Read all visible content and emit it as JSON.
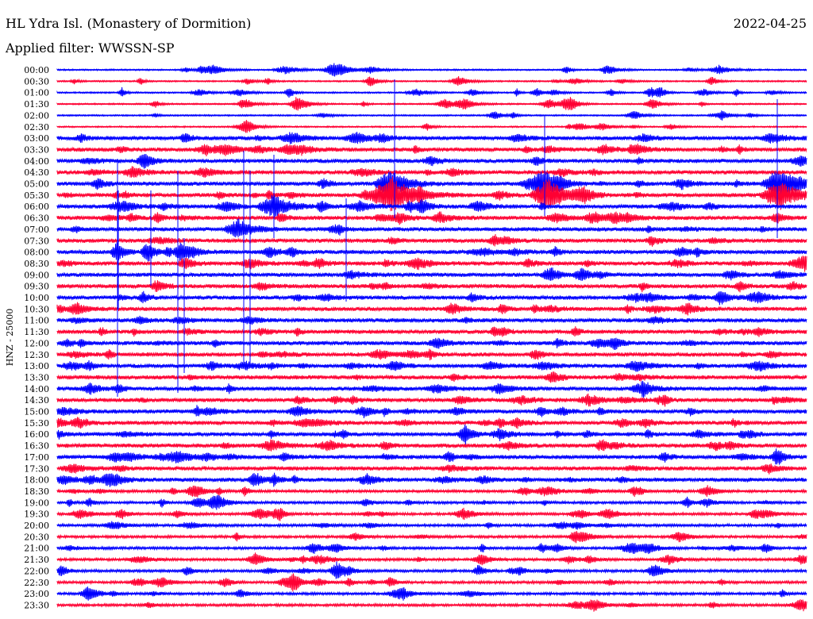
{
  "header": {
    "station": "HL Ydra Isl. (Monastery of Dormition)",
    "date": "2022-04-25",
    "filter": "Applied filter: WWSSN-SP"
  },
  "chart_data": {
    "type": "line",
    "ylabel": "HNZ - 25000",
    "rows": [
      "00:00",
      "00:30",
      "01:00",
      "01:30",
      "02:00",
      "02:30",
      "03:00",
      "03:30",
      "04:00",
      "04:30",
      "05:00",
      "05:30",
      "06:00",
      "06:30",
      "07:00",
      "07:30",
      "08:00",
      "08:30",
      "09:00",
      "09:30",
      "10:00",
      "10:30",
      "11:00",
      "11:30",
      "12:00",
      "12:30",
      "13:00",
      "13:30",
      "14:00",
      "14:30",
      "15:00",
      "15:30",
      "16:00",
      "16:30",
      "17:00",
      "17:30",
      "18:00",
      "18:30",
      "19:00",
      "19:30",
      "20:00",
      "20:30",
      "21:00",
      "21:30",
      "22:00",
      "22:30",
      "23:00",
      "23:30"
    ],
    "colors": [
      "#0000ff",
      "#ff0033"
    ],
    "grid": false,
    "minutes_per_row": 30
  }
}
